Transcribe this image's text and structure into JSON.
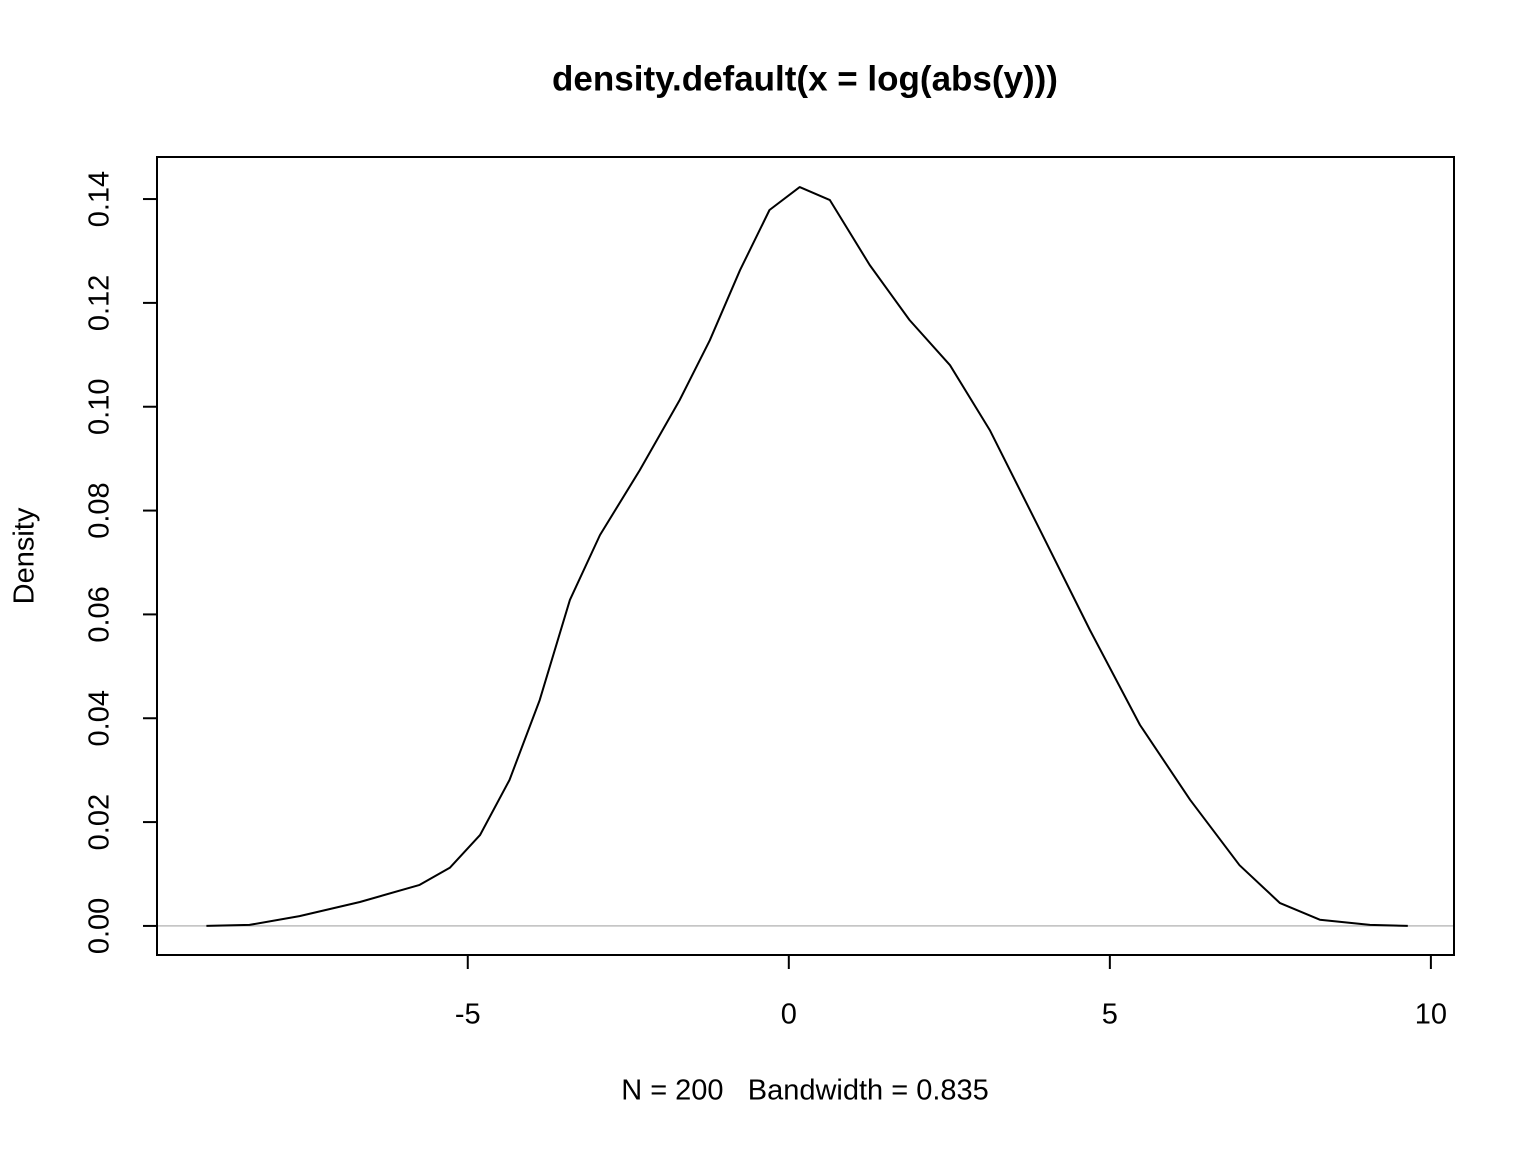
{
  "chart_data": {
    "type": "line",
    "title": "density.default(x = log(abs(y)))",
    "x_label": "N = 200   Bandwidth = 0.835",
    "y_label": "Density",
    "x": [
      -9.07,
      -8.4,
      -7.62,
      -6.68,
      -5.75,
      -5.28,
      -4.81,
      -4.35,
      -3.88,
      -3.41,
      -2.94,
      -2.32,
      -1.7,
      -1.23,
      -0.76,
      -0.3,
      0.17,
      0.64,
      1.26,
      1.88,
      2.51,
      3.13,
      3.91,
      4.69,
      5.47,
      6.25,
      7.02,
      7.65,
      8.27,
      9.05,
      9.64
    ],
    "values": [
      0,
      0.0002,
      0.0019,
      0.0046,
      0.0079,
      0.0112,
      0.0175,
      0.0281,
      0.0435,
      0.0628,
      0.0753,
      0.0878,
      0.1013,
      0.1128,
      0.1263,
      0.1379,
      0.1423,
      0.1398,
      0.1273,
      0.1167,
      0.108,
      0.0955,
      0.0763,
      0.057,
      0.0387,
      0.0243,
      0.0117,
      0.0044,
      0.0012,
      0.0002,
      0
    ],
    "color": "#000000",
    "xlim": [
      -9.84,
      10.36
    ],
    "ylim": [
      -0.0056,
      0.1481
    ],
    "xticks": [
      -5,
      0,
      5,
      10
    ],
    "yticks": [
      {
        "value": 0,
        "label": "0.00"
      },
      {
        "value": 0.02,
        "label": "0.02"
      },
      {
        "value": 0.04,
        "label": "0.04"
      },
      {
        "value": 0.06,
        "label": "0.06"
      },
      {
        "value": 0.08,
        "label": "0.08"
      },
      {
        "value": 0.1,
        "label": "0.10"
      },
      {
        "value": 0.12,
        "label": "0.12"
      },
      {
        "value": 0.14,
        "label": "0.14"
      }
    ]
  }
}
